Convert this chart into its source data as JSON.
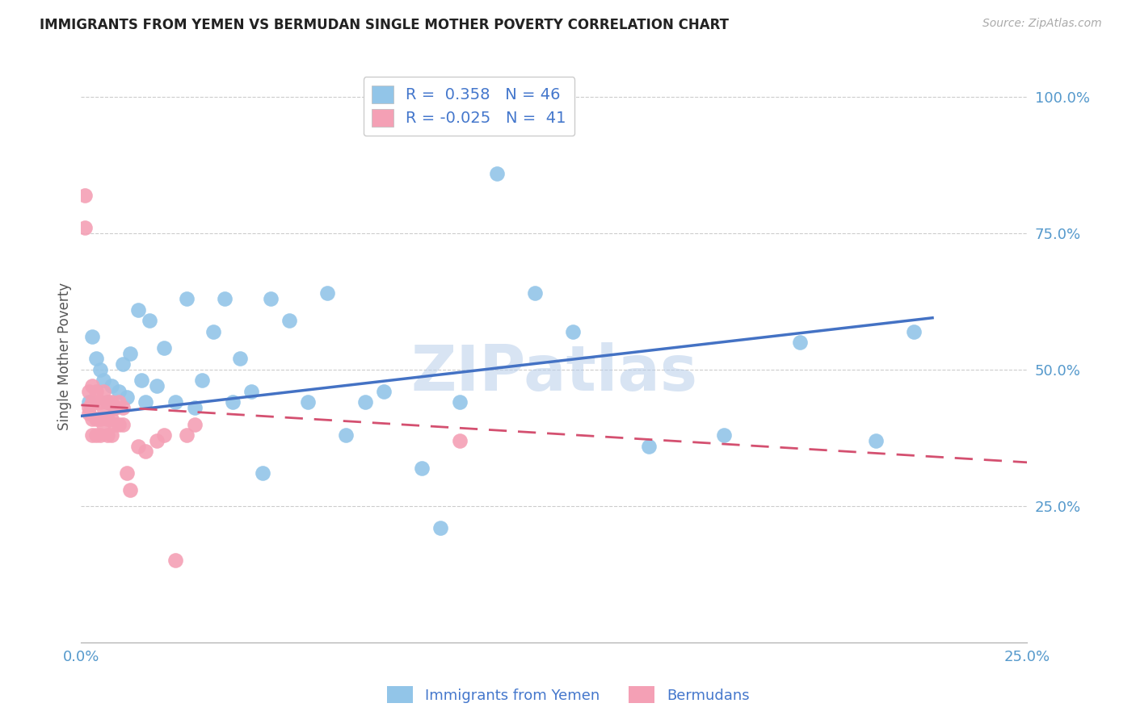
{
  "title": "IMMIGRANTS FROM YEMEN VS BERMUDAN SINGLE MOTHER POVERTY CORRELATION CHART",
  "source": "Source: ZipAtlas.com",
  "ylabel": "Single Mother Poverty",
  "xlim": [
    0.0,
    0.25
  ],
  "ylim": [
    0.0,
    1.05
  ],
  "x_ticks": [
    0.0,
    0.05,
    0.1,
    0.15,
    0.2,
    0.25
  ],
  "x_tick_labels": [
    "0.0%",
    "",
    "",
    "",
    "",
    "25.0%"
  ],
  "y_ticks_right": [
    0.25,
    0.5,
    0.75,
    1.0
  ],
  "y_tick_labels_right": [
    "25.0%",
    "50.0%",
    "75.0%",
    "100.0%"
  ],
  "blue_color": "#92C5E8",
  "pink_color": "#F4A0B5",
  "line_blue": "#4472C4",
  "line_pink": "#D45070",
  "watermark": "ZIPatlas",
  "blue_scatter_x": [
    0.002,
    0.003,
    0.004,
    0.005,
    0.006,
    0.007,
    0.008,
    0.009,
    0.01,
    0.011,
    0.012,
    0.013,
    0.015,
    0.016,
    0.017,
    0.018,
    0.02,
    0.022,
    0.025,
    0.028,
    0.03,
    0.032,
    0.035,
    0.038,
    0.04,
    0.042,
    0.045,
    0.048,
    0.05,
    0.055,
    0.06,
    0.065,
    0.07,
    0.075,
    0.08,
    0.09,
    0.095,
    0.1,
    0.11,
    0.12,
    0.13,
    0.15,
    0.17,
    0.19,
    0.21,
    0.22
  ],
  "blue_scatter_y": [
    0.44,
    0.56,
    0.52,
    0.5,
    0.48,
    0.44,
    0.47,
    0.43,
    0.46,
    0.51,
    0.45,
    0.53,
    0.61,
    0.48,
    0.44,
    0.59,
    0.47,
    0.54,
    0.44,
    0.63,
    0.43,
    0.48,
    0.57,
    0.63,
    0.44,
    0.52,
    0.46,
    0.31,
    0.63,
    0.59,
    0.44,
    0.64,
    0.38,
    0.44,
    0.46,
    0.32,
    0.21,
    0.44,
    0.86,
    0.64,
    0.57,
    0.36,
    0.38,
    0.55,
    0.37,
    0.57
  ],
  "pink_scatter_x": [
    0.001,
    0.001,
    0.002,
    0.002,
    0.002,
    0.003,
    0.003,
    0.003,
    0.003,
    0.004,
    0.004,
    0.004,
    0.004,
    0.005,
    0.005,
    0.005,
    0.006,
    0.006,
    0.006,
    0.007,
    0.007,
    0.007,
    0.008,
    0.008,
    0.008,
    0.009,
    0.009,
    0.01,
    0.01,
    0.011,
    0.011,
    0.012,
    0.013,
    0.015,
    0.017,
    0.02,
    0.022,
    0.025,
    0.028,
    0.03,
    0.1
  ],
  "pink_scatter_y": [
    0.82,
    0.76,
    0.46,
    0.43,
    0.42,
    0.47,
    0.44,
    0.41,
    0.38,
    0.46,
    0.44,
    0.41,
    0.38,
    0.44,
    0.41,
    0.38,
    0.46,
    0.43,
    0.4,
    0.44,
    0.41,
    0.38,
    0.44,
    0.41,
    0.38,
    0.43,
    0.4,
    0.44,
    0.4,
    0.43,
    0.4,
    0.31,
    0.28,
    0.36,
    0.35,
    0.37,
    0.38,
    0.15,
    0.38,
    0.4,
    0.37
  ],
  "blue_line_x": [
    0.0,
    0.225
  ],
  "blue_line_y": [
    0.415,
    0.595
  ],
  "pink_line_x": [
    0.0,
    0.25
  ],
  "pink_line_y": [
    0.435,
    0.33
  ],
  "grid_color": "#CCCCCC",
  "grid_linestyle": "--",
  "background_color": "#FFFFFF"
}
